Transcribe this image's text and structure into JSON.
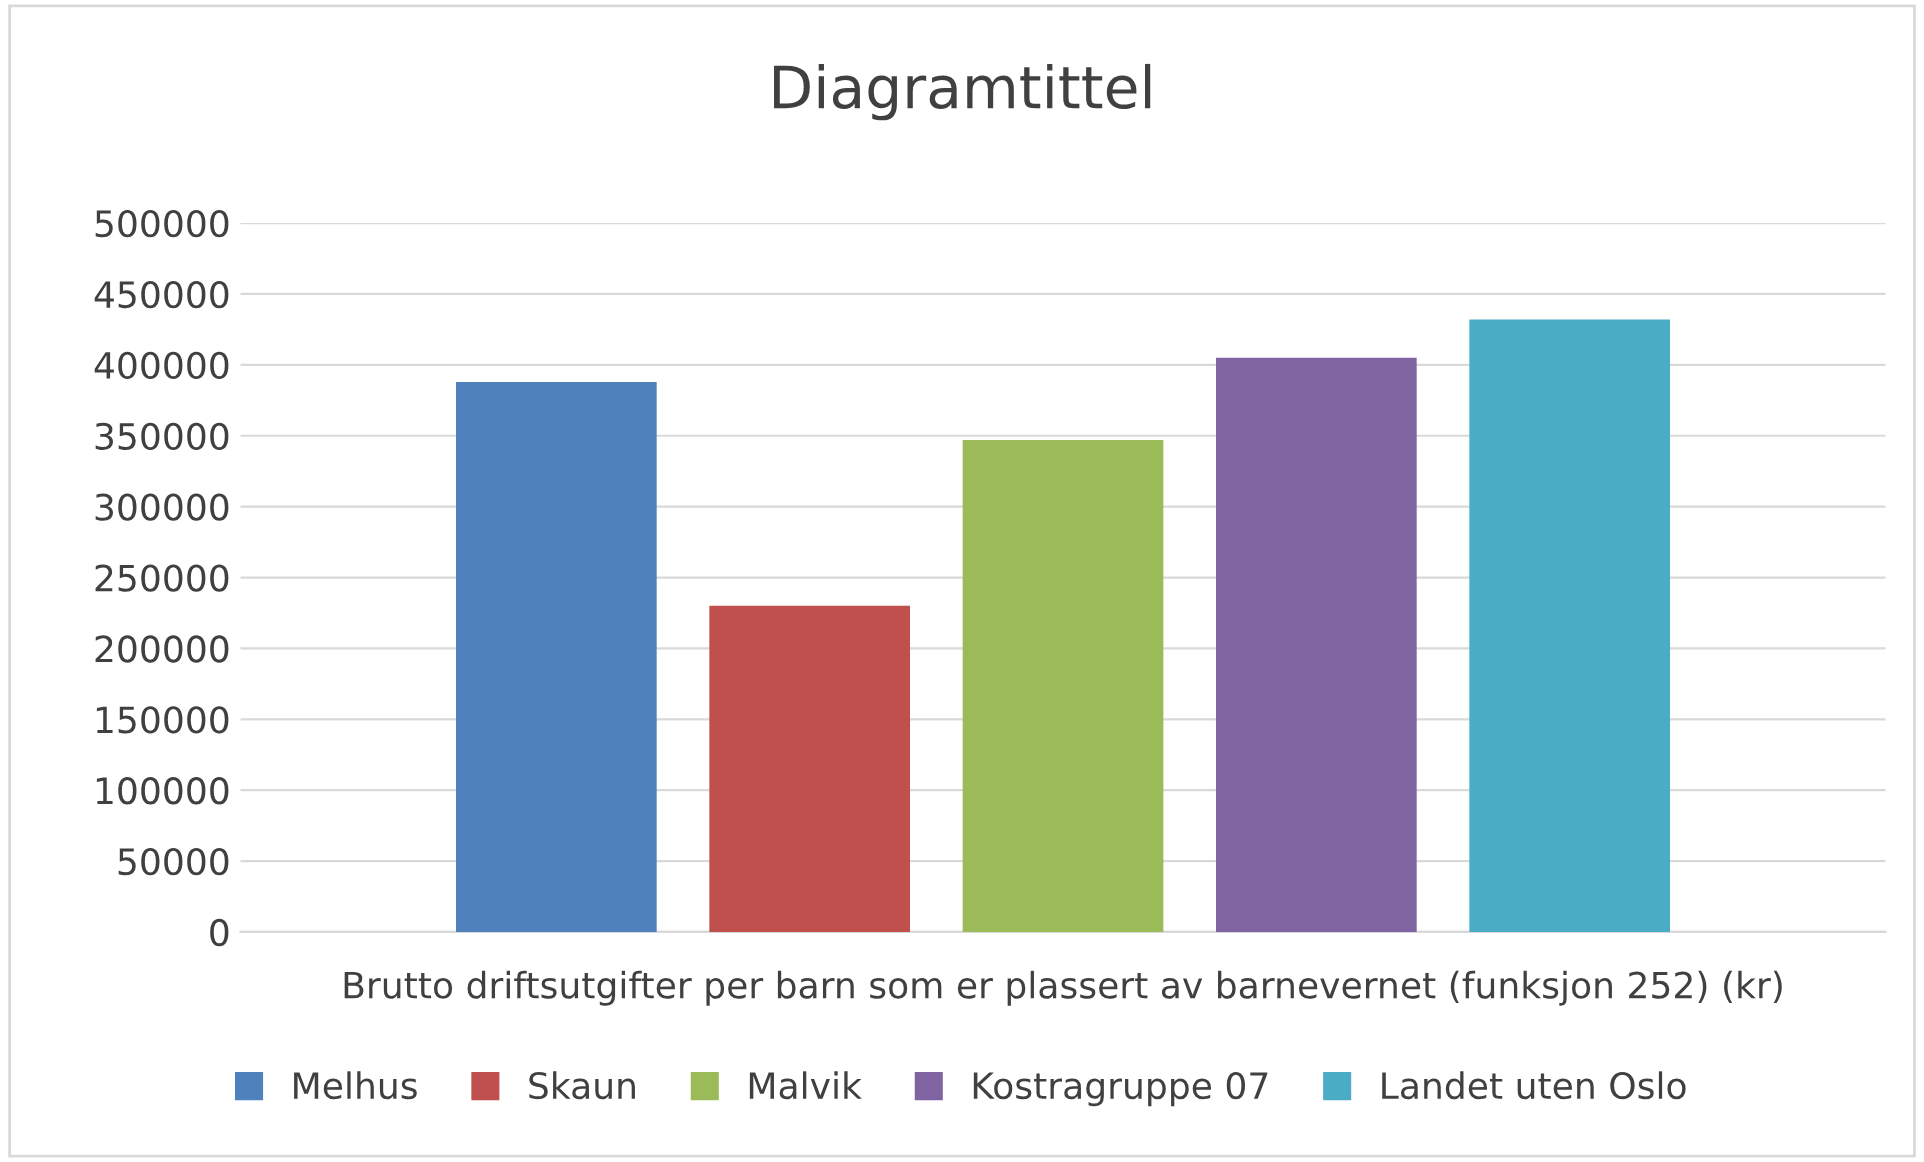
{
  "chart_data": {
    "type": "bar",
    "title": "Diagramtittel",
    "categories": [
      "Brutto driftsutgifter per barn som er plassert av barnevernet (funksjon 252) (kr)"
    ],
    "series": [
      {
        "name": "Melhus",
        "color": "#4f81bd",
        "values": [
          388000
        ]
      },
      {
        "name": "Skaun",
        "color": "#c0504d",
        "values": [
          230000
        ]
      },
      {
        "name": "Malvik",
        "color": "#9bbb59",
        "values": [
          347000
        ]
      },
      {
        "name": "Kostragruppe 07",
        "color": "#8064a2",
        "values": [
          405000
        ]
      },
      {
        "name": "Landet uten Oslo",
        "color": "#4bacc6",
        "values": [
          432000
        ]
      }
    ],
    "ylim": [
      0,
      500000
    ],
    "yticks": [
      0,
      50000,
      100000,
      150000,
      200000,
      250000,
      300000,
      350000,
      400000,
      450000,
      500000
    ],
    "grid": "y",
    "legend": "bottom"
  }
}
